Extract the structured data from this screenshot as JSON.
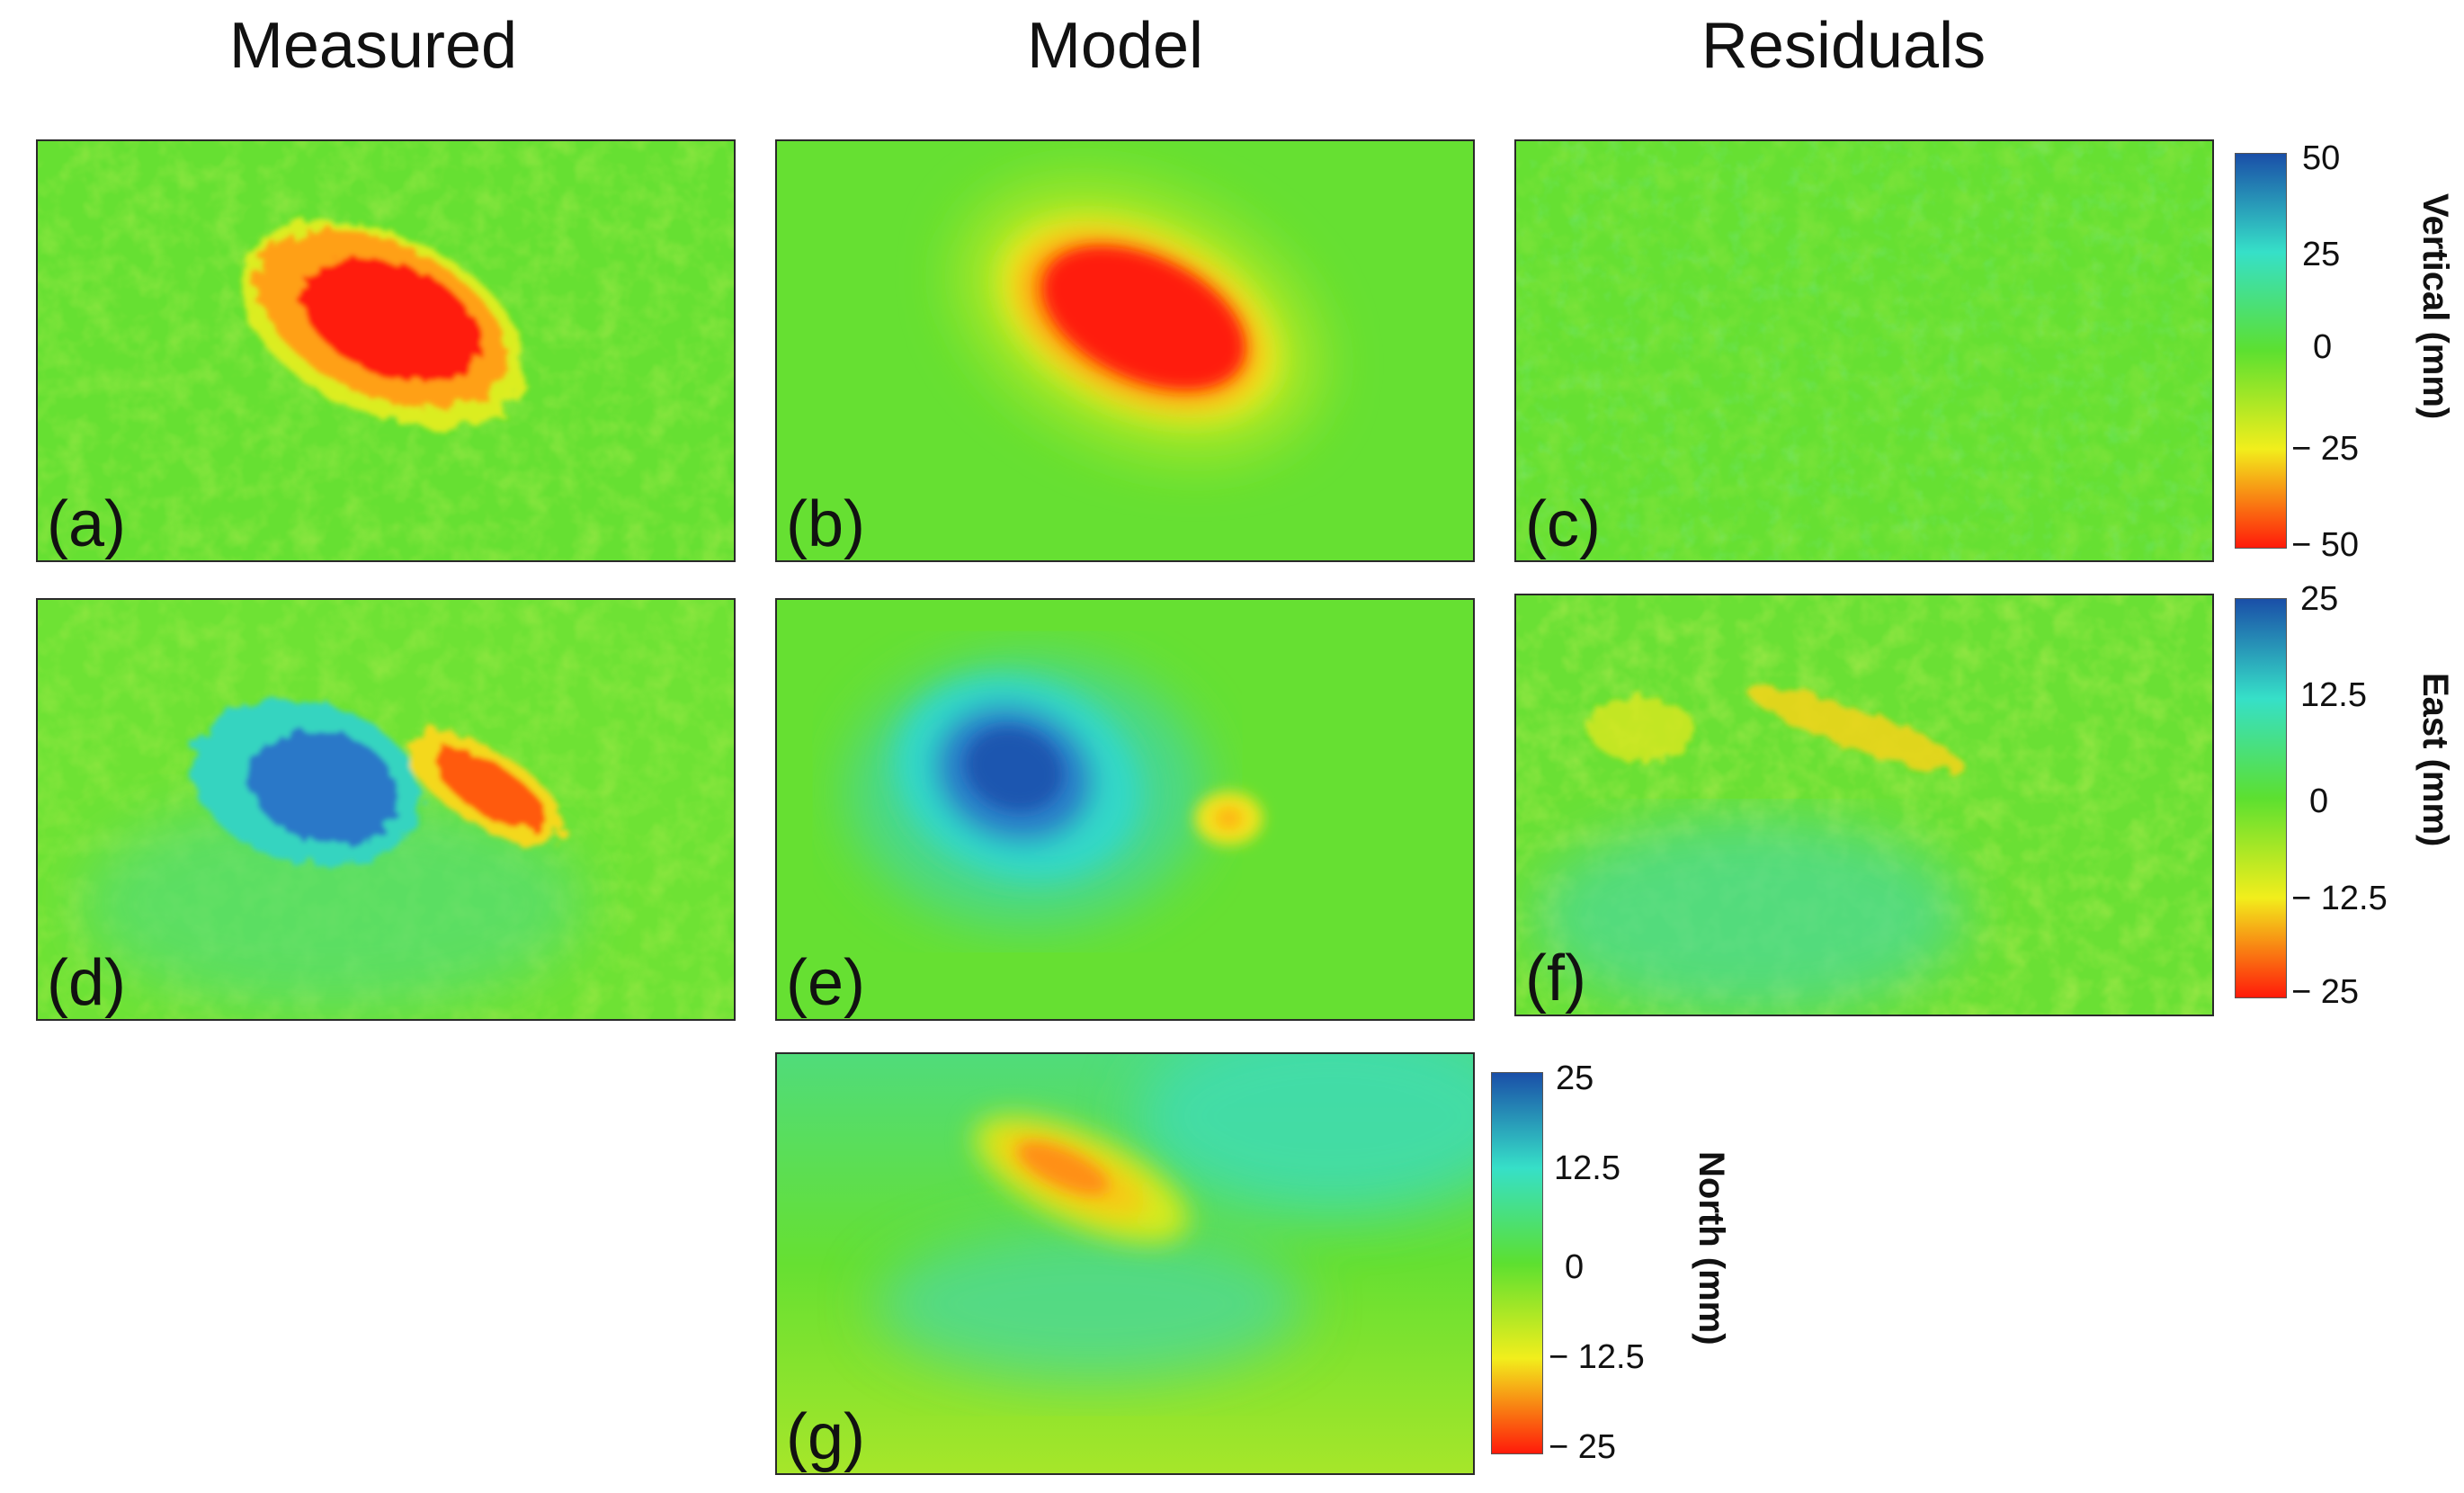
{
  "columns": {
    "measured": "Measured",
    "model": "Model",
    "residuals": "Residuals"
  },
  "panels": {
    "a": "(a)",
    "b": "(b)",
    "c": "(c)",
    "d": "(d)",
    "e": "(e)",
    "f": "(f)",
    "g": "(g)"
  },
  "colorbars": {
    "vertical": {
      "label": "Vertical (mm)",
      "ticks": [
        "50",
        "25",
        "0",
        "− 25",
        "− 50"
      ]
    },
    "east": {
      "label": "East (mm)",
      "ticks": [
        "25",
        "12.5",
        "0",
        "− 12.5",
        "− 25"
      ]
    },
    "north": {
      "label": "North (mm)",
      "ticks": [
        "25",
        "12.5",
        "0",
        "− 12.5",
        "− 25"
      ]
    }
  },
  "colors": {
    "background": "#66e032",
    "red": "#ff1a0a",
    "orange": "#ff8a10",
    "yellow": "#f2ee1c",
    "cyan": "#32dcb8",
    "blue": "#1a5ab8"
  }
}
